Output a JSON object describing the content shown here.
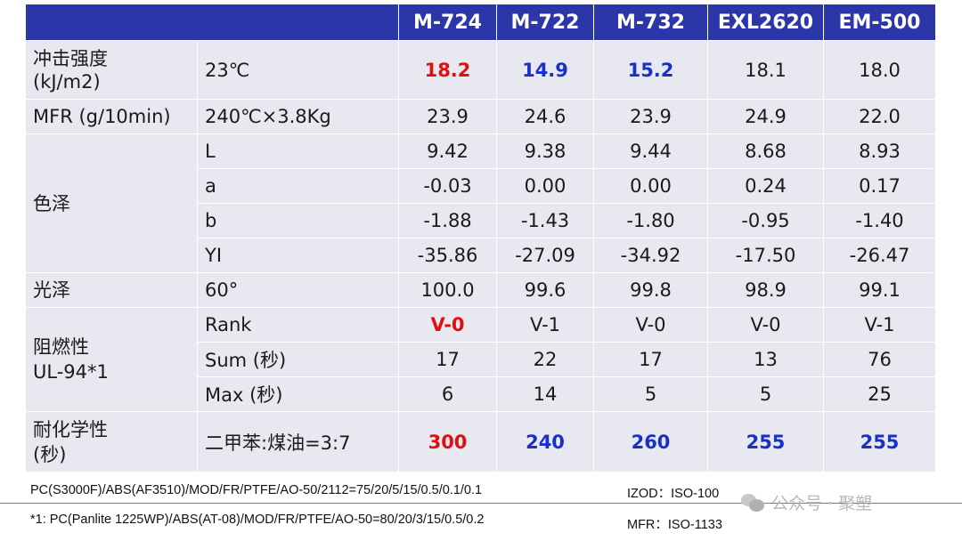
{
  "header": [
    "M-724",
    "M-722",
    "M-732",
    "EXL2620",
    "EM-500"
  ],
  "impact": {
    "prop": "冲击强度\n (kJ/m2)",
    "cond": "23℃",
    "values": [
      "18.2",
      "14.9",
      "15.2",
      "18.1",
      "18.0"
    ]
  },
  "mfr": {
    "prop": "MFR (g/10min)",
    "cond": "240℃×3.8Kg",
    "values": [
      "23.9",
      "24.6",
      "23.9",
      "24.9",
      "22.0"
    ]
  },
  "color": {
    "prop": "色泽",
    "L": {
      "cond": "L",
      "values": [
        "9.42",
        "9.38",
        "9.44",
        "8.68",
        "8.93"
      ]
    },
    "a": {
      "cond": "a",
      "values": [
        "-0.03",
        "0.00",
        "0.00",
        "0.24",
        "0.17"
      ]
    },
    "b": {
      "cond": "b",
      "values": [
        "-1.88",
        "-1.43",
        "-1.80",
        "-0.95",
        "-1.40"
      ]
    },
    "YI": {
      "cond": "YI",
      "values": [
        "-35.86",
        "-27.09",
        "-34.92",
        "-17.50",
        "-26.47"
      ]
    }
  },
  "gloss": {
    "prop": "光泽",
    "cond": "60°",
    "values": [
      "100.0",
      "99.6",
      "99.8",
      "98.9",
      "99.1"
    ]
  },
  "flame": {
    "prop": "阻燃性\nUL-94*1",
    "rank": {
      "cond": "Rank",
      "values": [
        "V-0",
        "V-1",
        "V-0",
        "V-0",
        "V-1"
      ]
    },
    "sum": {
      "cond": "Sum (秒)",
      "values": [
        "17",
        "22",
        "17",
        "13",
        "76"
      ]
    },
    "max": {
      "cond": "Max (秒)",
      "values": [
        "6",
        "14",
        "5",
        "5",
        "25"
      ]
    }
  },
  "chem": {
    "prop": "耐化学性\n(秒)",
    "cond": "二甲苯:煤油=3:7",
    "values": [
      "300",
      "240",
      "260",
      "255",
      "255"
    ]
  },
  "notes": {
    "line1": "PC(S3000F)/ABS(AF3510)/MOD/FR/PTFE/AO-50/2112=75/20/5/15/0.5/0.1/0.1",
    "line2": "*1: PC(Panlite 1225WP)/ABS(AT-08)/MOD/FR/PTFE/AO-50=80/20/3/15/0.5/0.2",
    "izod": "IZOD：ISO-100",
    "mfr": "MFR：ISO-1133"
  },
  "watermark": {
    "text": "公众号 · 聚塑",
    "icon": "wechat-icon"
  },
  "colors": {
    "header_bg": "#2b36a8",
    "cell_bg": "#e8e8f0",
    "red": "#e01010",
    "blue": "#1a2fc8"
  }
}
